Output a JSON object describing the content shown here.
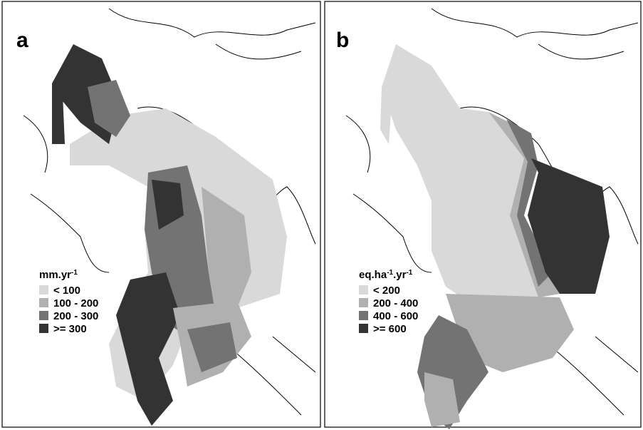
{
  "panels": [
    {
      "label": "a",
      "unit": [
        "mm.yr",
        "-1"
      ],
      "legend": [
        {
          "label": "< 100",
          "color": "#d9d9d9"
        },
        {
          "label": "100 - 200",
          "color": "#b0b0b0"
        },
        {
          "label": "200 - 300",
          "color": "#737373"
        },
        {
          "label": ">= 300",
          "color": "#333333"
        }
      ]
    },
    {
      "label": "b",
      "unit": [
        "eq.ha",
        "-1",
        ".yr",
        "-1"
      ],
      "legend": [
        {
          "label": "< 200",
          "color": "#d9d9d9"
        },
        {
          "label": "200 - 400",
          "color": "#b0b0b0"
        },
        {
          "label": "400 - 600",
          "color": "#737373"
        },
        {
          "label": ">= 600",
          "color": "#333333"
        }
      ]
    }
  ]
}
